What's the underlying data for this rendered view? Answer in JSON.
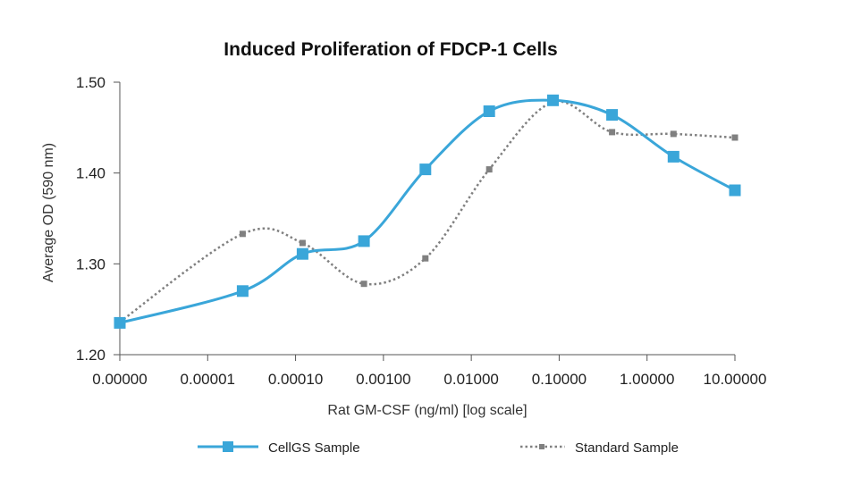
{
  "chart_data": {
    "type": "line",
    "title": "Induced Proliferation of FDCP-1 Cells",
    "xlabel": "Rat GM-CSF (ng/ml) [log scale]",
    "ylabel": "Average OD (590 nm)",
    "x_scale": "log",
    "x_tick_labels": [
      "0.00000",
      "0.00001",
      "0.00010",
      "0.00100",
      "0.01000",
      "0.10000",
      "1.00000",
      "10.00000"
    ],
    "x_tick_values": [
      1e-06,
      1e-05,
      0.0001,
      0.001,
      0.01,
      0.1,
      1,
      10
    ],
    "y_tick_labels": [
      "1.20",
      "1.30",
      "1.40",
      "1.50"
    ],
    "ylim": [
      1.2,
      1.5
    ],
    "grid": false,
    "legend_position": "bottom",
    "series": [
      {
        "name": "CellGS Sample",
        "color": "#3aa6d9",
        "style": "solid",
        "marker": "square",
        "x": [
          1e-06,
          2.5e-05,
          0.00012,
          0.0006,
          0.003,
          0.016,
          0.085,
          0.4,
          2.0,
          10.0
        ],
        "y": [
          1.235,
          1.27,
          1.311,
          1.325,
          1.404,
          1.468,
          1.48,
          1.464,
          1.418,
          1.381
        ]
      },
      {
        "name": "Standard Sample",
        "color": "#808080",
        "style": "dotted",
        "marker": "square",
        "x": [
          1e-06,
          2.5e-05,
          0.00012,
          0.0006,
          0.003,
          0.016,
          0.085,
          0.4,
          2.0,
          10.0
        ],
        "y": [
          1.236,
          1.333,
          1.323,
          1.278,
          1.306,
          1.404,
          1.478,
          1.445,
          1.443,
          1.439
        ]
      }
    ]
  }
}
